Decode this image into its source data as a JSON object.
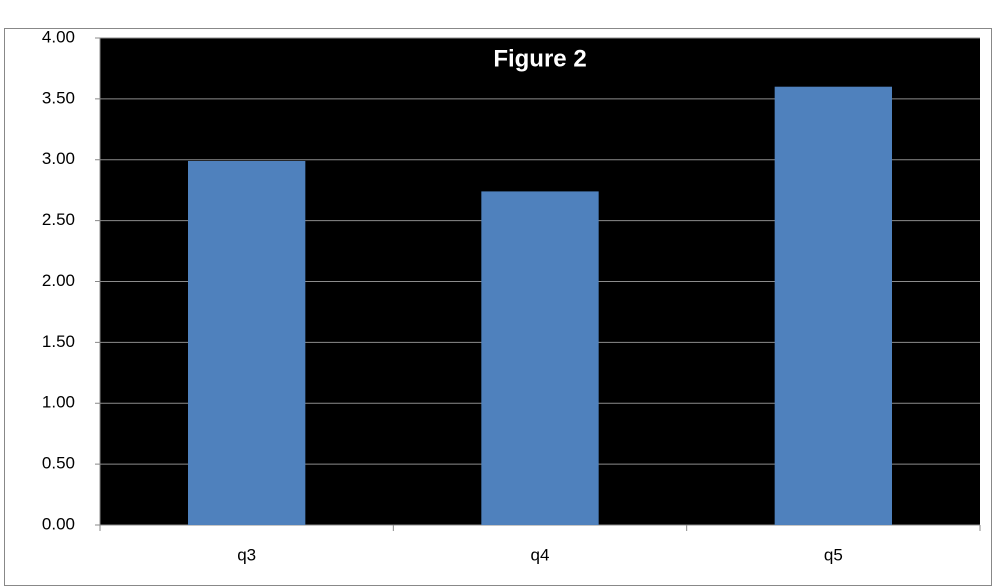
{
  "chart_data": {
    "type": "bar",
    "title": "Figure 2",
    "categories": [
      "q3",
      "q4",
      "q5"
    ],
    "values": [
      2.99,
      2.74,
      3.6
    ],
    "color": "#4f81bd",
    "ylim": [
      0,
      4
    ],
    "yticks": [
      {
        "value": 0,
        "label": "0.00"
      },
      {
        "value": 0.5,
        "label": "0.50"
      },
      {
        "value": 1,
        "label": "1.00"
      },
      {
        "value": 1.5,
        "label": "1.50"
      },
      {
        "value": 2,
        "label": "2.00"
      },
      {
        "value": 2.5,
        "label": "2.50"
      },
      {
        "value": 3,
        "label": "3.00"
      },
      {
        "value": 3.5,
        "label": "3.50"
      },
      {
        "value": 4,
        "label": "4.00"
      }
    ],
    "grid": true
  }
}
